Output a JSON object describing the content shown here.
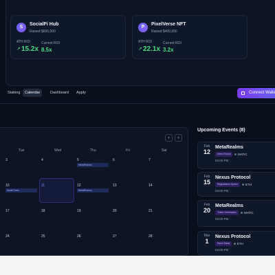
{
  "projects": [
    {
      "icon": "S",
      "name": "SocialFi Hub",
      "raised": "Raised $600,000",
      "ath_label": "ATH ROI",
      "ath": "15.2x",
      "current_label": "Current ROI",
      "current": "8.5x"
    },
    {
      "icon": "P",
      "name": "PixelVerse NFT",
      "raised": "Raised $400,000",
      "ath_label": "ATH ROI",
      "ath": "22.1x",
      "current_label": "Current ROI",
      "current": "3.2x"
    }
  ],
  "nav": {
    "tabs": [
      "Staking",
      "Calendar",
      "Dashboard",
      "Apply"
    ],
    "active": 1,
    "button": "Connect Wallet"
  },
  "calendar": {
    "weekdays": [
      "Tue",
      "Wed",
      "Thu",
      "Fri",
      "Sat"
    ],
    "weeks": [
      [
        {
          "day": "3"
        },
        {
          "day": "4"
        },
        {
          "day": "5",
          "event": "MetaRealms"
        },
        {
          "day": "6"
        },
        {
          "day": "7"
        }
      ],
      [
        {
          "day": "10",
          "event": "NodeChain"
        },
        {
          "day": "11",
          "selected": true
        },
        {
          "day": "12",
          "event": "MetaRealms"
        },
        {
          "day": "13"
        },
        {
          "day": "14"
        }
      ],
      [
        {
          "day": "17"
        },
        {
          "day": "18"
        },
        {
          "day": "19"
        },
        {
          "day": "20"
        },
        {
          "day": "21"
        }
      ],
      [
        {
          "day": "24"
        },
        {
          "day": "25"
        },
        {
          "day": "26"
        },
        {
          "day": "27"
        },
        {
          "day": "28"
        }
      ]
    ]
  },
  "events": {
    "title": "Upcoming Events (8)",
    "items": [
      {
        "month": "Feb",
        "day": "12",
        "name": "MetaRealms",
        "stage": "Seed Round",
        "chain": "MATIC",
        "time": "03:00 PM"
      },
      {
        "month": "Feb",
        "day": "15",
        "name": "Nexus Protocol",
        "stage": "Registration Opens",
        "chain": "ETH",
        "time": "03:00 PM"
      },
      {
        "month": "Feb",
        "day": "20",
        "name": "MetaRealms",
        "stage": "Token Generation",
        "chain": "MATIC",
        "time": "03:00 PM"
      },
      {
        "month": "Mar",
        "day": "1",
        "name": "Nexus Protocol",
        "stage": "Seed Starts",
        "chain": "ETH",
        "time": "03:00 PM"
      }
    ]
  }
}
